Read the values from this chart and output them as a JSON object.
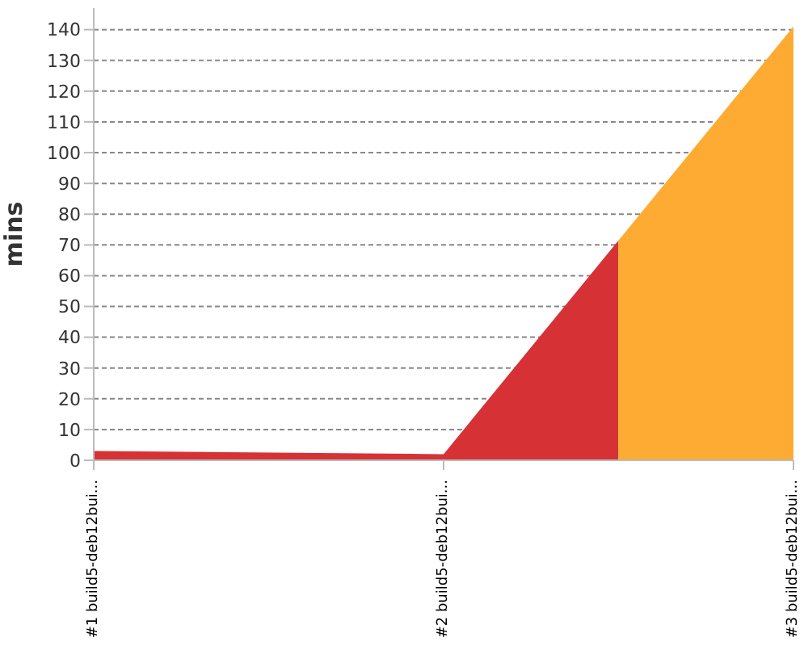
{
  "chart_data": {
    "type": "area",
    "ylabel": "mins",
    "categories": [
      "#1 build5-deb12bui...",
      "#2 build5-deb12bui...",
      "#3 build5-deb12bui..."
    ],
    "values": [
      3,
      2,
      141
    ],
    "colors": [
      "#d63236",
      "#d63236",
      "#feab33"
    ],
    "ylim": [
      0,
      147
    ],
    "yticks": [
      0,
      10,
      20,
      30,
      40,
      50,
      60,
      70,
      80,
      90,
      100,
      110,
      120,
      130,
      140
    ],
    "grid": "y"
  }
}
